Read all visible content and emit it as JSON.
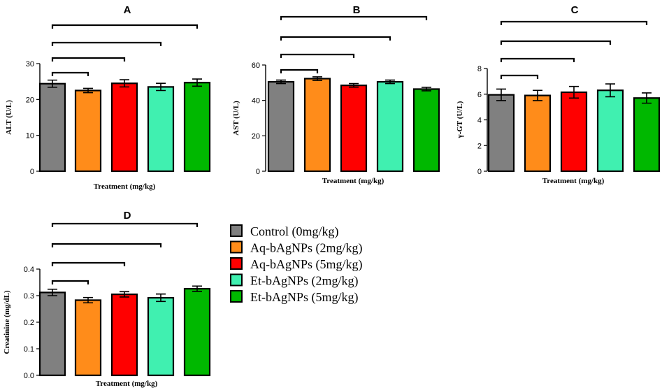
{
  "chart_data": [
    {
      "type": "bar",
      "title": "A",
      "xlabel": "Treatment (mg/kg)",
      "ylabel": "ALT (U/L)",
      "ylim": [
        0,
        30
      ],
      "yticks": [
        "0",
        "10",
        "20",
        "30"
      ],
      "categories": [
        "Control (0mg/kg)",
        "Aq-bAgNPs (2mg/kg)",
        "Aq-bAgNPs (5mg/kg)",
        "Et-bAgNPs (2mg/kg)",
        "Et-bAgNPs (5mg/kg)"
      ],
      "values": [
        24.4,
        22.5,
        24.5,
        23.5,
        24.7
      ],
      "errors": [
        1.0,
        0.6,
        1.0,
        1.0,
        1.0
      ],
      "comparisons": [
        [
          0,
          1
        ],
        [
          0,
          2
        ],
        [
          0,
          3
        ],
        [
          0,
          4
        ]
      ]
    },
    {
      "type": "bar",
      "title": "B",
      "xlabel": "Treatment (mg/kg)",
      "ylabel": "AST (U/L)",
      "ylim": [
        0,
        60
      ],
      "yticks": [
        "0",
        "20",
        "40",
        "60"
      ],
      "categories": [
        "Control (0mg/kg)",
        "Aq-bAgNPs (2mg/kg)",
        "Aq-bAgNPs (5mg/kg)",
        "Et-bAgNPs (2mg/kg)",
        "Et-bAgNPs (5mg/kg)"
      ],
      "values": [
        50.5,
        52.3,
        48.5,
        50.5,
        46.4
      ],
      "errors": [
        1.0,
        1.0,
        1.0,
        1.0,
        1.0
      ],
      "comparisons": [
        [
          0,
          1
        ],
        [
          0,
          2
        ],
        [
          0,
          3
        ],
        [
          0,
          4
        ]
      ]
    },
    {
      "type": "bar",
      "title": "C",
      "xlabel": "Treatment (mg/kg)",
      "ylabel": "γ-GT (U/L)",
      "ylim": [
        0,
        8
      ],
      "yticks": [
        "0",
        "2",
        "4",
        "6",
        "8"
      ],
      "categories": [
        "Control (0mg/kg)",
        "Aq-bAgNPs (2mg/kg)",
        "Aq-bAgNPs (5mg/kg)",
        "Et-bAgNPs (2mg/kg)",
        "Et-bAgNPs (5mg/kg)"
      ],
      "values": [
        5.95,
        5.9,
        6.15,
        6.3,
        5.7
      ],
      "errors": [
        0.45,
        0.4,
        0.45,
        0.5,
        0.4
      ],
      "comparisons": [
        [
          0,
          1
        ],
        [
          0,
          2
        ],
        [
          0,
          3
        ],
        [
          0,
          4
        ]
      ]
    },
    {
      "type": "bar",
      "title": "D",
      "xlabel": "Treatment (mg/kg)",
      "ylabel": "Creatinine (mg/dL)",
      "ylim": [
        0,
        0.4
      ],
      "yticks": [
        "0.0",
        "0.1",
        "0.2",
        "0.3",
        "0.4"
      ],
      "categories": [
        "Control (0mg/kg)",
        "Aq-bAgNPs (2mg/kg)",
        "Aq-bAgNPs (5mg/kg)",
        "Et-bAgNPs (2mg/kg)",
        "Et-bAgNPs (5mg/kg)"
      ],
      "values": [
        0.312,
        0.283,
        0.305,
        0.292,
        0.326
      ],
      "errors": [
        0.012,
        0.01,
        0.01,
        0.014,
        0.01
      ],
      "comparisons": [
        [
          0,
          1
        ],
        [
          0,
          2
        ],
        [
          0,
          3
        ],
        [
          0,
          4
        ]
      ]
    }
  ],
  "legend": {
    "items": [
      {
        "label": "Control (0mg/kg)",
        "color": "#808080"
      },
      {
        "label": "Aq-bAgNPs (2mg/kg)",
        "color": "#ff8c1a"
      },
      {
        "label": "Aq-bAgNPs (5mg/kg)",
        "color": "#ff0000"
      },
      {
        "label": "Et-bAgNPs (2mg/kg)",
        "color": "#40f0b0"
      },
      {
        "label": "Et-bAgNPs (5mg/kg)",
        "color": "#00b800"
      }
    ]
  }
}
